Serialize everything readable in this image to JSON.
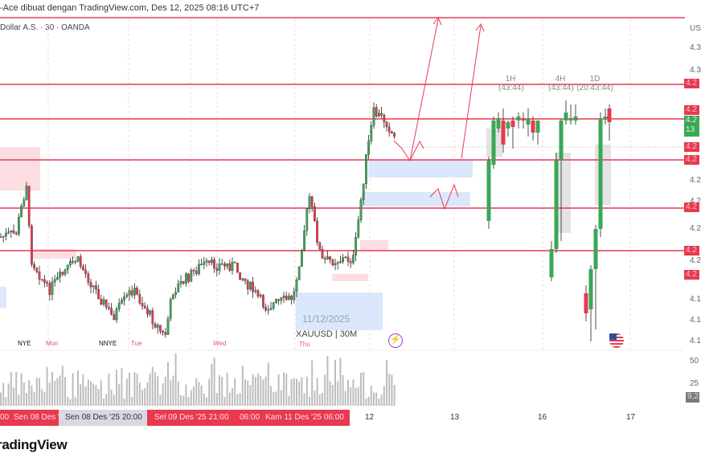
{
  "header": {
    "caption": "-Ace dibuat dengan TradingView.com, Des 12, 2025 08:16 UTC+7",
    "symbol_line": "Dollar A.S. · 30 · OANDA"
  },
  "price_axis": {
    "currency": "US",
    "labels": [
      "4.3",
      "4.3",
      "4.2",
      "4.2",
      "4.2",
      "4.2",
      "4.1",
      "4.1",
      "4.1"
    ],
    "red_tags": [
      "4.2",
      "4.2",
      "4.2",
      "4.2",
      "4.2",
      "4.2",
      "4.2"
    ],
    "current_price": "4.2",
    "countdown": "13"
  },
  "timeframe_labels": [
    {
      "tf": "1H",
      "timer": "(43:44)"
    },
    {
      "tf": "4H",
      "timer": "(43:44)"
    },
    {
      "tf": "1D",
      "timer": "(20:43:44)"
    }
  ],
  "chart_labels": {
    "date_box": "11/12/2025",
    "symbol_tf": "XAUUSD | 30M"
  },
  "session_labels": {
    "days": [
      "Mon",
      "Tue",
      "Wed",
      "Thu"
    ],
    "nye": [
      "NYE",
      "NNYE"
    ]
  },
  "volume_axis": {
    "labels": [
      "50",
      "25"
    ],
    "current": "9,2"
  },
  "time_axis": {
    "highlight": [
      "00",
      "Sen 08 Des '2",
      "Sen 08 Des '25  20:00",
      "Sel 09 Des '25  21:00",
      "06:00",
      "Kam 11 Des '25  06:00"
    ],
    "ticks": [
      "12",
      "13",
      "16",
      "17"
    ]
  },
  "footer": {
    "logo": "radingView"
  },
  "colors": {
    "bull": "#3aa757",
    "bear": "#e8394f",
    "level": "#e8394f",
    "zone_blue": "#dbe8fb",
    "zone_pink": "#fcdde2",
    "arrow": "#e8394f"
  },
  "chart_data": {
    "type": "candlestick",
    "symbol": "XAUUSD",
    "interval": "30M",
    "xlabel": "",
    "ylabel": ""
  }
}
